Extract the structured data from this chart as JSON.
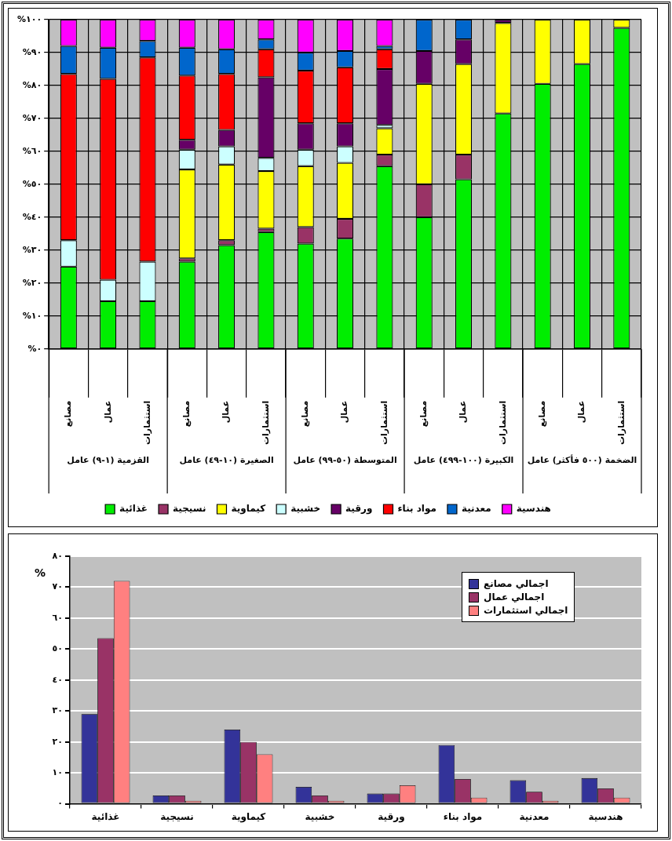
{
  "chart_data": [
    {
      "type": "bar",
      "stacked": true,
      "grid": true,
      "legend": "bottom",
      "categories": [
        "مصانع",
        "عمال",
        "استثمارات",
        "مصانع",
        "عمال",
        "استثمارات",
        "مصانع",
        "عمال",
        "استثمارات",
        "مصانع",
        "عمال",
        "استثمارات",
        "مصانع",
        "عمال",
        "استثمارات"
      ],
      "annotations": [
        "القزمية (١-٩) عامل",
        "الصغيرة (١٠-٤٩) عامل",
        "المتوسطة (٥٠-٩٩) عامل",
        "الكبيرة (١٠٠-٤٩٩) عامل",
        "الضخمة (٥٠٠ فأكثر) عامل"
      ],
      "ylim": [
        0,
        100
      ],
      "yticks": [
        {
          "value": 0,
          "label": "%٠"
        },
        {
          "value": 10,
          "label": "%١٠"
        },
        {
          "value": 20,
          "label": "%٢٠"
        },
        {
          "value": 30,
          "label": "%٣٠"
        },
        {
          "value": 40,
          "label": "%٤٠"
        },
        {
          "value": 50,
          "label": "%٥٠"
        },
        {
          "value": 60,
          "label": "%٦٠"
        },
        {
          "value": 70,
          "label": "%٧٠"
        },
        {
          "value": 80,
          "label": "%٨٠"
        },
        {
          "value": 90,
          "label": "%٩٠"
        },
        {
          "value": 100,
          "label": "%١٠٠"
        }
      ],
      "series": [
        {
          "name": "غذائية",
          "color": "#00ee00",
          "values": [
            25,
            14.5,
            14.5,
            26.5,
            31.5,
            35.5,
            32,
            33.5,
            55.5,
            40,
            51.5,
            71.5,
            80.5,
            86.5,
            97.5
          ]
        },
        {
          "name": "نسيجية",
          "color": "#993366",
          "values": [
            0,
            0,
            0,
            1,
            1.5,
            1,
            5,
            6,
            3.5,
            10,
            7.5,
            0,
            0,
            0,
            0
          ]
        },
        {
          "name": "كيماوية",
          "color": "#ffff00",
          "values": [
            0,
            0,
            0,
            27,
            23,
            17.5,
            18.5,
            17,
            8,
            30.5,
            27.5,
            27.5,
            19.5,
            13.5,
            2.5
          ]
        },
        {
          "name": "خشبية",
          "color": "#ccffff",
          "values": [
            8,
            6.5,
            12,
            6,
            5.5,
            4,
            5,
            5,
            1,
            0,
            0,
            0,
            0,
            0,
            0
          ]
        },
        {
          "name": "ورقية",
          "color": "#660066",
          "values": [
            0,
            0,
            0,
            3,
            5,
            24.5,
            8,
            7,
            17,
            10,
            7.5,
            1,
            0,
            0,
            0
          ]
        },
        {
          "name": "مواد بناء",
          "color": "#ff0000",
          "values": [
            50.5,
            61,
            62,
            19.5,
            17,
            8.5,
            16,
            17,
            6,
            0,
            0,
            0,
            0,
            0,
            0
          ]
        },
        {
          "name": "معدنية",
          "color": "#0066cc",
          "values": [
            8.5,
            9.5,
            5,
            8.5,
            7.5,
            3,
            5.5,
            5,
            1,
            9.5,
            6,
            0,
            0,
            0,
            0
          ]
        },
        {
          "name": "هندسية",
          "color": "#ff00ff",
          "values": [
            8,
            8.5,
            6.5,
            8.5,
            9,
            6,
            10,
            9.5,
            8,
            0,
            0,
            0,
            0,
            0,
            0
          ]
        }
      ]
    },
    {
      "type": "bar",
      "grid": "y",
      "legend": "top right",
      "ylabel": "%",
      "categories": [
        "غذائية",
        "نسيجية",
        "كيماوية",
        "خشبية",
        "ورقية",
        "مواد بناء",
        "معدنية",
        "هندسية"
      ],
      "ylim": [
        0,
        80
      ],
      "yticks": [
        {
          "value": 0,
          "label": "٠"
        },
        {
          "value": 10,
          "label": "١٠"
        },
        {
          "value": 20,
          "label": "٢٠"
        },
        {
          "value": 30,
          "label": "٣٠"
        },
        {
          "value": 40,
          "label": "٤٠"
        },
        {
          "value": 50,
          "label": "٥٠"
        },
        {
          "value": 60,
          "label": "٦٠"
        },
        {
          "value": 70,
          "label": "٧٠"
        },
        {
          "value": 80,
          "label": "٨٠"
        }
      ],
      "series": [
        {
          "name": "اجمالي مصانع",
          "color": "#333399",
          "values": [
            29,
            2.7,
            24,
            5.5,
            3.3,
            19,
            7.6,
            8.3
          ]
        },
        {
          "name": "اجمالي عمال",
          "color": "#993366",
          "values": [
            53.5,
            2.7,
            20,
            2.7,
            3.3,
            8,
            3.9,
            5
          ]
        },
        {
          "name": "اجمالي استثمارات",
          "color": "#ff8080",
          "values": [
            72,
            1,
            16,
            1,
            6,
            2,
            1,
            2
          ]
        }
      ]
    }
  ]
}
